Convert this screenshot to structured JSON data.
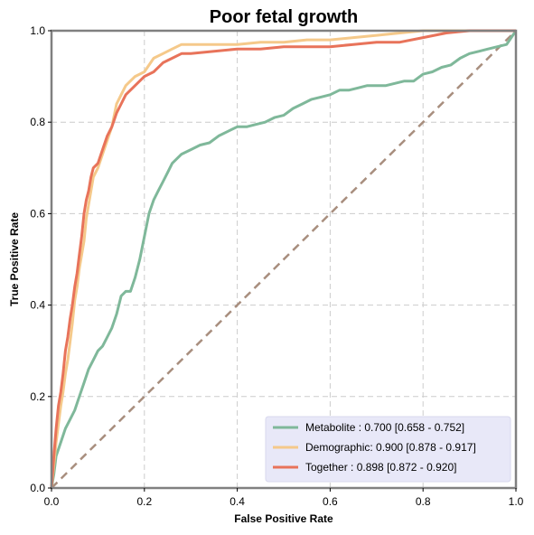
{
  "chart_data": {
    "type": "line",
    "title": "Poor fetal growth",
    "xlabel": "False Positive Rate",
    "ylabel": "True Positive Rate",
    "xlim": [
      0,
      1
    ],
    "ylim": [
      0,
      1
    ],
    "xticks": [
      "0.0",
      "0.2",
      "0.4",
      "0.6",
      "0.8",
      "1.0"
    ],
    "yticks": [
      "0.0",
      "0.2",
      "0.4",
      "0.6",
      "0.8",
      "1.0"
    ],
    "grid": true,
    "legend_position": "bottom-right",
    "legend_background": "#e8e8f8",
    "diagonal": {
      "x": [
        0,
        1
      ],
      "y": [
        0,
        1
      ],
      "color": "#a88e7e"
    },
    "series": [
      {
        "name": "Metabolite",
        "legend_label": "Metabolite     : 0.700 [0.658 - 0.752]",
        "color": "#7fb89a",
        "x": [
          0,
          0.005,
          0.01,
          0.02,
          0.03,
          0.04,
          0.05,
          0.06,
          0.07,
          0.08,
          0.09,
          0.1,
          0.11,
          0.12,
          0.13,
          0.14,
          0.15,
          0.16,
          0.17,
          0.18,
          0.19,
          0.2,
          0.21,
          0.22,
          0.23,
          0.24,
          0.25,
          0.26,
          0.28,
          0.3,
          0.32,
          0.34,
          0.36,
          0.38,
          0.4,
          0.42,
          0.44,
          0.46,
          0.48,
          0.5,
          0.52,
          0.54,
          0.56,
          0.58,
          0.6,
          0.62,
          0.64,
          0.66,
          0.68,
          0.7,
          0.72,
          0.74,
          0.76,
          0.78,
          0.8,
          0.82,
          0.84,
          0.86,
          0.88,
          0.9,
          0.92,
          0.94,
          0.96,
          0.98,
          1.0
        ],
        "y": [
          0,
          0.03,
          0.07,
          0.1,
          0.13,
          0.15,
          0.17,
          0.2,
          0.23,
          0.26,
          0.28,
          0.3,
          0.31,
          0.33,
          0.35,
          0.38,
          0.42,
          0.43,
          0.43,
          0.46,
          0.5,
          0.55,
          0.6,
          0.63,
          0.65,
          0.67,
          0.69,
          0.71,
          0.73,
          0.74,
          0.75,
          0.755,
          0.77,
          0.78,
          0.79,
          0.79,
          0.795,
          0.8,
          0.81,
          0.815,
          0.83,
          0.84,
          0.85,
          0.855,
          0.86,
          0.87,
          0.87,
          0.875,
          0.88,
          0.88,
          0.88,
          0.885,
          0.89,
          0.89,
          0.905,
          0.91,
          0.92,
          0.925,
          0.94,
          0.95,
          0.955,
          0.96,
          0.965,
          0.97,
          1.0
        ]
      },
      {
        "name": "Demographic",
        "legend_label": "Demographic: 0.900 [0.878 - 0.917]",
        "color": "#f5c98a",
        "x": [
          0,
          0.005,
          0.01,
          0.015,
          0.02,
          0.025,
          0.03,
          0.035,
          0.04,
          0.045,
          0.05,
          0.055,
          0.06,
          0.065,
          0.07,
          0.075,
          0.08,
          0.085,
          0.09,
          0.1,
          0.11,
          0.12,
          0.13,
          0.14,
          0.15,
          0.16,
          0.18,
          0.2,
          0.22,
          0.24,
          0.26,
          0.28,
          0.3,
          0.35,
          0.4,
          0.45,
          0.5,
          0.55,
          0.6,
          0.65,
          0.7,
          0.75,
          0.8,
          0.85,
          0.9,
          0.95,
          1.0
        ],
        "y": [
          0,
          0.05,
          0.1,
          0.14,
          0.18,
          0.21,
          0.25,
          0.28,
          0.32,
          0.36,
          0.41,
          0.44,
          0.48,
          0.51,
          0.54,
          0.59,
          0.62,
          0.65,
          0.68,
          0.7,
          0.73,
          0.76,
          0.79,
          0.84,
          0.86,
          0.88,
          0.9,
          0.91,
          0.94,
          0.95,
          0.96,
          0.97,
          0.97,
          0.97,
          0.97,
          0.975,
          0.975,
          0.98,
          0.98,
          0.985,
          0.99,
          0.995,
          1.0,
          1.0,
          1.0,
          1.0,
          1.0
        ]
      },
      {
        "name": "Together",
        "legend_label": "Together       : 0.898 [0.872 - 0.920]",
        "color": "#e8735a",
        "x": [
          0,
          0.005,
          0.01,
          0.015,
          0.02,
          0.025,
          0.03,
          0.035,
          0.04,
          0.045,
          0.05,
          0.055,
          0.06,
          0.065,
          0.07,
          0.075,
          0.08,
          0.085,
          0.09,
          0.1,
          0.11,
          0.12,
          0.13,
          0.14,
          0.15,
          0.16,
          0.18,
          0.2,
          0.22,
          0.24,
          0.26,
          0.28,
          0.3,
          0.35,
          0.4,
          0.45,
          0.5,
          0.55,
          0.6,
          0.65,
          0.7,
          0.75,
          0.8,
          0.85,
          0.9,
          0.95,
          1.0
        ],
        "y": [
          0,
          0.07,
          0.13,
          0.18,
          0.21,
          0.25,
          0.3,
          0.33,
          0.37,
          0.4,
          0.44,
          0.47,
          0.51,
          0.55,
          0.6,
          0.63,
          0.65,
          0.68,
          0.7,
          0.71,
          0.74,
          0.77,
          0.79,
          0.82,
          0.84,
          0.86,
          0.88,
          0.9,
          0.91,
          0.93,
          0.94,
          0.95,
          0.95,
          0.955,
          0.96,
          0.96,
          0.965,
          0.965,
          0.965,
          0.97,
          0.975,
          0.975,
          0.985,
          0.995,
          1.0,
          1.0,
          1.0
        ]
      }
    ]
  }
}
